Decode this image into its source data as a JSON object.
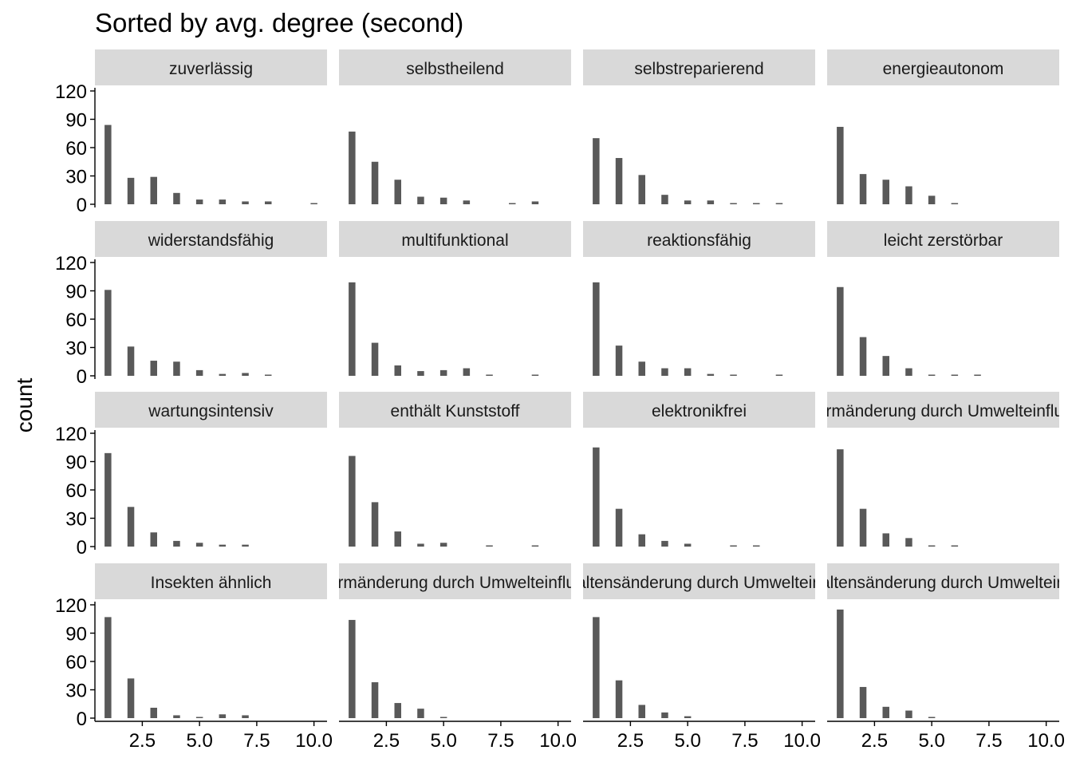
{
  "chart_data": {
    "type": "bar",
    "title": "Sorted by avg. degree (second)",
    "xlabel": "",
    "ylabel": "count",
    "ylim": [
      0,
      120
    ],
    "yticks": [
      "0",
      "30",
      "60",
      "90",
      "120"
    ],
    "xticks": [
      "2.5",
      "5.0",
      "7.5",
      "10.0"
    ],
    "xtick_values": [
      2.5,
      5.0,
      7.5,
      10.0
    ],
    "xlim": [
      0.5,
      10.5
    ],
    "x": [
      1,
      2,
      3,
      4,
      5,
      6,
      7,
      8,
      9,
      10
    ],
    "bar_color": "#595959",
    "strip_color": "#d9d9d9",
    "grid": false,
    "facets": [
      {
        "label": "zuverlässig",
        "values": [
          84,
          28,
          29,
          12,
          5,
          5,
          3,
          3,
          0,
          1
        ]
      },
      {
        "label": "selbstheilend",
        "values": [
          77,
          45,
          26,
          8,
          7,
          4,
          0,
          1,
          3,
          0
        ]
      },
      {
        "label": "selbstreparierend",
        "values": [
          70,
          49,
          31,
          10,
          4,
          4,
          1,
          1,
          1,
          0
        ]
      },
      {
        "label": "energieautonom",
        "values": [
          82,
          32,
          26,
          19,
          9,
          1,
          0,
          0,
          0,
          0
        ]
      },
      {
        "label": "widerstandsfähig",
        "values": [
          91,
          31,
          16,
          15,
          6,
          2,
          3,
          1,
          0,
          0
        ]
      },
      {
        "label": "multifunktional",
        "values": [
          99,
          35,
          11,
          5,
          6,
          8,
          1,
          0,
          1,
          0
        ]
      },
      {
        "label": "reaktionsfähig",
        "values": [
          99,
          32,
          15,
          8,
          8,
          2,
          1,
          0,
          1,
          0
        ]
      },
      {
        "label": "leicht zerstörbar",
        "values": [
          94,
          41,
          21,
          8,
          1,
          1,
          1,
          0,
          0,
          0
        ]
      },
      {
        "label": "wartungsintensiv",
        "values": [
          99,
          42,
          15,
          6,
          4,
          2,
          2,
          0,
          0,
          0
        ]
      },
      {
        "label": "enthält Kunststoff",
        "values": [
          96,
          47,
          16,
          3,
          4,
          0,
          1,
          0,
          1,
          0
        ]
      },
      {
        "label": "elektronikfrei",
        "values": [
          105,
          40,
          13,
          6,
          3,
          0,
          1,
          1,
          0,
          0
        ]
      },
      {
        "label": "Formänderung durch Umwelteinfluss",
        "values": [
          103,
          40,
          14,
          9,
          1,
          1,
          0,
          0,
          0,
          0
        ]
      },
      {
        "label": "Insekten ähnlich",
        "values": [
          107,
          42,
          11,
          3,
          1,
          4,
          3,
          0,
          0,
          0
        ]
      },
      {
        "label": "Formänderung durch Umwelteinfluss",
        "values": [
          104,
          38,
          16,
          10,
          1,
          0,
          0,
          0,
          0,
          0
        ]
      },
      {
        "label": "Verhaltensänderung durch Umwelteinfluss",
        "values": [
          107,
          40,
          14,
          6,
          2,
          0,
          0,
          0,
          0,
          0
        ]
      },
      {
        "label": "Verhaltensänderung durch Umwelteinfluss",
        "values": [
          115,
          33,
          12,
          8,
          1,
          0,
          0,
          0,
          0,
          0
        ]
      }
    ]
  }
}
